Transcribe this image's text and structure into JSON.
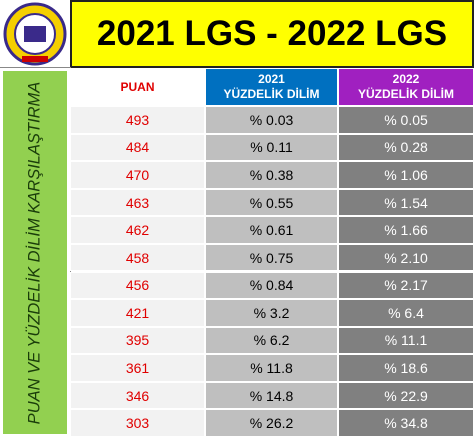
{
  "header": {
    "title": "2021 LGS - 2022 LGS",
    "side_label": "PUAN VE YÜZDELİK DİLİM KARŞILAŞTIRMA"
  },
  "table": {
    "columns": [
      {
        "title": "PUAN"
      },
      {
        "year": "2021",
        "title": "YÜZDELİK DİLİM"
      },
      {
        "year": "2022",
        "title": "YÜZDELİK DİLİM"
      }
    ],
    "rows": [
      [
        493,
        "% 0.03",
        "% 0.05"
      ],
      [
        484,
        "% 0.11",
        "% 0.28"
      ],
      [
        470,
        "% 0.38",
        "% 1.06"
      ],
      [
        463,
        "% 0.55",
        "% 1.54"
      ],
      [
        462,
        "% 0.61",
        "% 1.66"
      ],
      [
        458,
        "% 0.75",
        "% 2.10"
      ],
      [
        456,
        "% 0.84",
        "% 2.17"
      ],
      [
        421,
        "% 3.2",
        "% 6.4"
      ],
      [
        395,
        "% 6.2",
        "% 11.1"
      ],
      [
        361,
        "% 11.8",
        "% 18.6"
      ],
      [
        346,
        "% 14.8",
        "% 22.9"
      ],
      [
        303,
        "% 26.2",
        "% 34.8"
      ]
    ]
  }
}
